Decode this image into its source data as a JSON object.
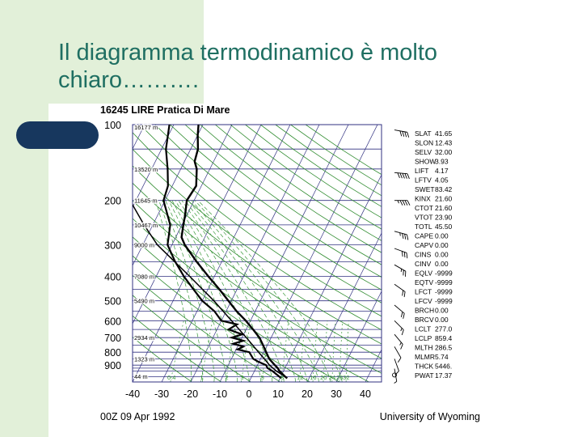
{
  "slide": {
    "title_line1": "Il diagramma termodinamico è molto",
    "title_line2": "chiaro………."
  },
  "colors": {
    "title": "#1f6f62",
    "background_tint": "#e2f0d9",
    "accent_pill": "#17375e",
    "isobar": "#303080",
    "dry_adiabat": "#2e8b2e",
    "mixing_ratio": "#3a9a3a",
    "sounding": "#000000"
  },
  "chart_data": {
    "type": "line",
    "title": "16245 LIRE Pratica Di Mare",
    "footer_left": "00Z 09 Apr 1992",
    "footer_right": "University of Wyoming",
    "y_scale": "log-pressure",
    "ylim": [
      1050,
      100
    ],
    "xlim": [
      -40,
      40
    ],
    "x_ticks": [
      "-40",
      "-30",
      "-20",
      "-10",
      "0",
      "10",
      "20",
      "30",
      "40"
    ],
    "pressure_labels": [
      {
        "p": 100,
        "label": "100"
      },
      {
        "p": 200,
        "label": "200"
      },
      {
        "p": 300,
        "label": "300"
      },
      {
        "p": 400,
        "label": "400"
      },
      {
        "p": 500,
        "label": "500"
      },
      {
        "p": 600,
        "label": "600"
      },
      {
        "p": 700,
        "label": "700"
      },
      {
        "p": 800,
        "label": "800"
      },
      {
        "p": 900,
        "label": "900"
      }
    ],
    "isobars": [
      100,
      125,
      150,
      200,
      250,
      300,
      350,
      400,
      450,
      500,
      550,
      600,
      650,
      700,
      750,
      800,
      850,
      900,
      925,
      950,
      1000
    ],
    "height_labels": [
      {
        "p": 100,
        "label": "16177 m"
      },
      {
        "p": 150,
        "label": "13520 m"
      },
      {
        "p": 200,
        "label": "11645 m"
      },
      {
        "p": 250,
        "label": "10467 m"
      },
      {
        "p": 300,
        "label": "9000 m"
      },
      {
        "p": 400,
        "label": "7080 m"
      },
      {
        "p": 500,
        "label": "5490 m"
      },
      {
        "p": 700,
        "label": "2934 m"
      },
      {
        "p": 850,
        "label": "1323 m"
      },
      {
        "p": 1000,
        "label": "44 m"
      }
    ],
    "mixing_ratio_labels": [
      "0.4",
      "1",
      "2",
      "3",
      "5",
      "8",
      "12",
      "16",
      "20",
      "24",
      "28",
      "32"
    ],
    "series": [
      {
        "role": "temperature",
        "points": [
          {
            "p": 1015,
            "t": 12.5
          },
          {
            "p": 1000,
            "t": 11.5
          },
          {
            "p": 950,
            "t": 8.6
          },
          {
            "p": 925,
            "t": 7.5
          },
          {
            "p": 900,
            "t": 6.0
          },
          {
            "p": 850,
            "t": 3.0
          },
          {
            "p": 800,
            "t": 0.8
          },
          {
            "p": 750,
            "t": -1.5
          },
          {
            "p": 700,
            "t": -4.0
          },
          {
            "p": 650,
            "t": -7.6
          },
          {
            "p": 600,
            "t": -11.6
          },
          {
            "p": 550,
            "t": -16.4
          },
          {
            "p": 500,
            "t": -21.0
          },
          {
            "p": 450,
            "t": -26.1
          },
          {
            "p": 400,
            "t": -32.1
          },
          {
            "p": 350,
            "t": -38.6
          },
          {
            "p": 300,
            "t": -45.6
          },
          {
            "p": 280,
            "t": -48.0
          },
          {
            "p": 250,
            "t": -49.5
          },
          {
            "p": 230,
            "t": -50.5
          },
          {
            "p": 200,
            "t": -52.5
          },
          {
            "p": 175,
            "t": -51.8
          },
          {
            "p": 150,
            "t": -54.5
          },
          {
            "p": 140,
            "t": -56.5
          },
          {
            "p": 125,
            "t": -57.5
          },
          {
            "p": 110,
            "t": -60.0
          },
          {
            "p": 100,
            "t": -61.5
          }
        ]
      },
      {
        "role": "dewpoint",
        "points": [
          {
            "p": 1015,
            "t": 10.5
          },
          {
            "p": 1000,
            "t": 9.5
          },
          {
            "p": 950,
            "t": 6.2
          },
          {
            "p": 925,
            "t": 4.0
          },
          {
            "p": 900,
            "t": 3.0
          },
          {
            "p": 870,
            "t": -0.5
          },
          {
            "p": 850,
            "t": -2.5
          },
          {
            "p": 800,
            "t": -5.0
          },
          {
            "p": 780,
            "t": -9.5
          },
          {
            "p": 760,
            "t": -8.0
          },
          {
            "p": 740,
            "t": -12.0
          },
          {
            "p": 720,
            "t": -9.0
          },
          {
            "p": 700,
            "t": -13.5
          },
          {
            "p": 680,
            "t": -10.5
          },
          {
            "p": 650,
            "t": -16.0
          },
          {
            "p": 620,
            "t": -14.0
          },
          {
            "p": 600,
            "t": -20.0
          },
          {
            "p": 550,
            "t": -24.0
          },
          {
            "p": 500,
            "t": -30.0
          },
          {
            "p": 450,
            "t": -35.0
          },
          {
            "p": 400,
            "t": -40.5
          },
          {
            "p": 350,
            "t": -46.0
          },
          {
            "p": 300,
            "t": -51.5
          },
          {
            "p": 250,
            "t": -54.0
          },
          {
            "p": 200,
            "t": -60.5
          },
          {
            "p": 175,
            "t": -61.5
          },
          {
            "p": 150,
            "t": -64.5
          },
          {
            "p": 125,
            "t": -68.5
          },
          {
            "p": 100,
            "t": -71.5
          }
        ]
      },
      {
        "role": "parcel",
        "points": [
          {
            "p": 1000,
            "t": 11.5
          },
          {
            "p": 950,
            "t": 7.5
          },
          {
            "p": 900,
            "t": 4.2
          },
          {
            "p": 850,
            "t": 1.3
          },
          {
            "p": 800,
            "t": -1.8
          },
          {
            "p": 700,
            "t": -8.5
          },
          {
            "p": 600,
            "t": -16.5
          },
          {
            "p": 500,
            "t": -26.0
          },
          {
            "p": 400,
            "t": -38.5
          },
          {
            "p": 300,
            "t": -55.0
          },
          {
            "p": 250,
            "t": -63.0
          },
          {
            "p": 200,
            "t": -72.0
          }
        ]
      }
    ],
    "wind_barbs": [
      {
        "p": 105,
        "dir": 280,
        "spd": 40
      },
      {
        "p": 155,
        "dir": 275,
        "spd": 50
      },
      {
        "p": 200,
        "dir": 270,
        "spd": 45
      },
      {
        "p": 265,
        "dir": 285,
        "spd": 35
      },
      {
        "p": 310,
        "dir": 290,
        "spd": 30
      },
      {
        "p": 360,
        "dir": 300,
        "spd": 25
      },
      {
        "p": 430,
        "dir": 305,
        "spd": 20
      },
      {
        "p": 520,
        "dir": 310,
        "spd": 20
      },
      {
        "p": 600,
        "dir": 315,
        "spd": 15
      },
      {
        "p": 680,
        "dir": 320,
        "spd": 15
      },
      {
        "p": 760,
        "dir": 330,
        "spd": 10
      },
      {
        "p": 850,
        "dir": 340,
        "spd": 10
      },
      {
        "p": 930,
        "dir": 350,
        "spd": 5
      }
    ],
    "calm_marker_p": 985,
    "indices": [
      {
        "name": "SLAT",
        "value": "41.65"
      },
      {
        "name": "SLON",
        "value": "12.43"
      },
      {
        "name": "SELV",
        "value": "32.00"
      },
      {
        "name": "SHOW",
        "value": "3.93"
      },
      {
        "name": "LIFT",
        "value": "4.17"
      },
      {
        "name": "LFTV",
        "value": "4.05"
      },
      {
        "name": "SWET",
        "value": "83.42"
      },
      {
        "name": "KINX",
        "value": "21.60"
      },
      {
        "name": "CTOT",
        "value": "21.60"
      },
      {
        "name": "VTOT",
        "value": "23.90"
      },
      {
        "name": "TOTL",
        "value": "45.50"
      },
      {
        "name": "CAPE",
        "value": "0.00"
      },
      {
        "name": "CAPV",
        "value": "0.00"
      },
      {
        "name": "CINS",
        "value": "0.00"
      },
      {
        "name": "CINV",
        "value": "0.00"
      },
      {
        "name": "EQLV",
        "value": "-9999"
      },
      {
        "name": "EQTV",
        "value": "-9999"
      },
      {
        "name": "LFCT",
        "value": "-9999"
      },
      {
        "name": "LFCV",
        "value": "-9999"
      },
      {
        "name": "BRCH",
        "value": "0.00"
      },
      {
        "name": "BRCV",
        "value": "0.00"
      },
      {
        "name": "LCLT",
        "value": "277.0"
      },
      {
        "name": "LCLP",
        "value": "859.4"
      },
      {
        "name": "MLTH",
        "value": "286.5"
      },
      {
        "name": "MLMR",
        "value": "5.74"
      },
      {
        "name": "THCK",
        "value": "5446."
      },
      {
        "name": "PWAT",
        "value": "17.37"
      }
    ]
  }
}
